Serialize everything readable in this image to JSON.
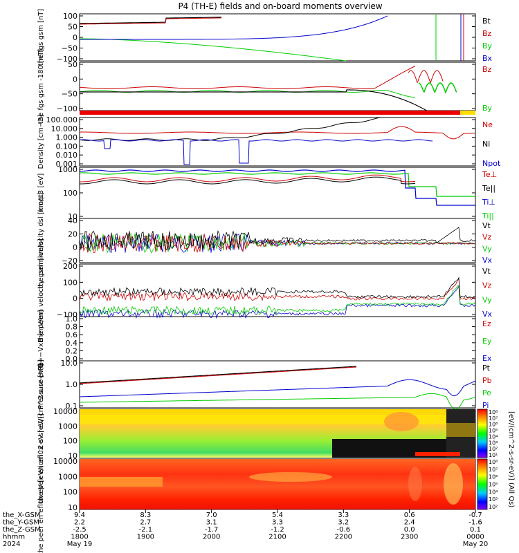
{
  "figure": {
    "title": "P4 (TH-E) fields and on-board moments overview",
    "time_ticks": [
      {
        "hhmm": "1800",
        "x": "9.4",
        "y": "2.2",
        "z": "-2.5",
        "date": "May 19"
      },
      {
        "hhmm": "1900",
        "x": "8.3",
        "y": "2.7",
        "z": "-2.1",
        "date": ""
      },
      {
        "hhmm": "2000",
        "x": "7.0",
        "y": "3.1",
        "z": "-1.7",
        "date": ""
      },
      {
        "hhmm": "2100",
        "x": "5.4",
        "y": "3.3",
        "z": "-1.2",
        "date": ""
      },
      {
        "hhmm": "2200",
        "x": "3.3",
        "y": "3.2",
        "z": "-0.6",
        "date": ""
      },
      {
        "hhmm": "2300",
        "x": "0.6",
        "y": "2.4",
        "z": "0.0",
        "date": ""
      },
      {
        "hhmm": "0000",
        "x": "-0.7",
        "y": "-1.6",
        "z": "0.1",
        "date": "May 20"
      }
    ],
    "footer_labels": [
      "the_X-GSM",
      "the_Y-GSM",
      "the_Z-GSM",
      "hhmm",
      "2024"
    ],
    "colorbar1_label": "[eV/(cm^2-s-sr-eV)] (All Qs)",
    "colorbar2_label": "[eV/(cm^2-s-sr-eV)] (All Qs)"
  },
  "chart_data": [
    {
      "type": "line",
      "ylabel": "the fgs gsm [nT]",
      "ylim": [
        -100,
        100
      ],
      "yticks": [
        "100",
        "50",
        "0",
        "−50",
        "−100"
      ],
      "series": [
        {
          "name": "Bt",
          "color": "#000000"
        },
        {
          "name": "Bz",
          "color": "#cc0000"
        },
        {
          "name": "By",
          "color": "#00cc00"
        },
        {
          "name": "Bx",
          "color": "#0000cc"
        }
      ]
    },
    {
      "type": "line",
      "ylabel": "the fgs gsm -180 [nT]",
      "ylim": [
        -130,
        70
      ],
      "yticks": [
        "50",
        "0",
        "−50",
        "−100"
      ],
      "series": [
        {
          "name": "Bz",
          "color": "#cc0000"
        },
        {
          "name": "By",
          "color": "#00cc00"
        }
      ]
    },
    {
      "type": "line",
      "ylabel": "Density [cm−3]",
      "scale": "log",
      "yticks": [
        "100.000",
        "10.000",
        "1.000",
        "0.100",
        "0.010",
        "0.001"
      ],
      "series": [
        {
          "name": "Ne",
          "color": "#cc0000"
        },
        {
          "name": "Ni",
          "color": "#000000"
        },
        {
          "name": "Npot",
          "color": "#0000cc"
        }
      ]
    },
    {
      "type": "line",
      "ylabel": "moqt3 [eV]",
      "scale": "log",
      "yticks": [
        "1000",
        "100",
        "10"
      ],
      "series": [
        {
          "name": "Te⊥",
          "color": "#cc0000"
        },
        {
          "name": "Te||",
          "color": "#000000"
        },
        {
          "name": "Ti⊥",
          "color": "#0000cc"
        },
        {
          "name": "Ti||",
          "color": "#00cc00"
        }
      ]
    },
    {
      "type": "line",
      "ylabel": "the peim velocity dsl [km/s]",
      "ylim": [
        -30,
        40
      ],
      "yticks": [
        "40",
        "20",
        "0",
        "−20"
      ],
      "series": [
        {
          "name": "Vt",
          "color": "#000000"
        },
        {
          "name": "Vz",
          "color": "#cc0000"
        },
        {
          "name": "Vy",
          "color": "#00cc00"
        },
        {
          "name": "Vx",
          "color": "#0000cc"
        }
      ]
    },
    {
      "type": "line",
      "ylabel": "the peem velocity gsm [km/s]",
      "ylim": [
        -120,
        300
      ],
      "yticks": [
        "200",
        "100",
        "0",
        "−100"
      ],
      "series": [
        {
          "name": "Vt",
          "color": "#000000"
        },
        {
          "name": "Vz",
          "color": "#cc0000"
        },
        {
          "name": "Vy",
          "color": "#00cc00"
        },
        {
          "name": "Vx",
          "color": "#0000cc"
        }
      ]
    },
    {
      "type": "line",
      "ylabel": "E=−VxB [mV/m]",
      "ylim": [
        0,
        1
      ],
      "yticks": [
        "1.0",
        "0.8",
        "0.6",
        "0.4",
        "0.2",
        "0.0"
      ],
      "series": [
        {
          "name": "Ez",
          "color": "#cc0000"
        },
        {
          "name": "Ey",
          "color": "#00cc00"
        },
        {
          "name": "Ex",
          "color": "#0000cc"
        }
      ]
    },
    {
      "type": "line",
      "ylabel": "Pressure [nPa]",
      "scale": "log",
      "yticks": [
        "10.0",
        "1.0",
        "0.1"
      ],
      "series": [
        {
          "name": "Pt",
          "color": "#000000"
        },
        {
          "name": "Pb",
          "color": "#cc0000"
        },
        {
          "name": "Pe",
          "color": "#00cc00"
        },
        {
          "name": "Pi",
          "color": "#0000cc"
        }
      ]
    },
    {
      "type": "heatmap",
      "ylabel": "the peir en eflux eV [eV/(cm^2-s-sr-eV)]",
      "scale": "log",
      "yticks": [
        "10000",
        "1000",
        "100",
        "10"
      ],
      "colorbar_ticks": [
        "10⁸",
        "10⁷",
        "10⁶",
        "10⁵",
        "10⁴",
        "10³",
        "10²",
        "10¹"
      ]
    },
    {
      "type": "heatmap",
      "ylabel": "the peer en eflux eV [eV/(cm^2-s-sr-eV)]",
      "scale": "log",
      "yticks": [
        "10000",
        "1000",
        "100",
        "10"
      ],
      "colorbar_ticks": [
        "10⁸",
        "10⁷",
        "10⁶",
        "10⁵",
        "10⁴",
        "10³",
        "10²"
      ]
    }
  ]
}
